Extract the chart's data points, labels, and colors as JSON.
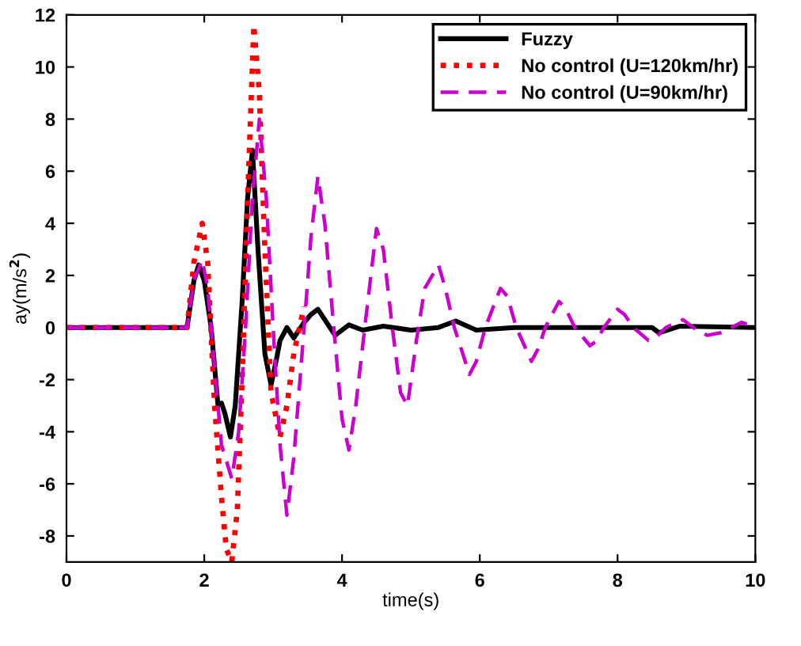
{
  "chart_data": {
    "type": "line",
    "xlabel": "time(s)",
    "ylabel": "ay(m/s$^{2}$)",
    "xlim": [
      0,
      10
    ],
    "ylim": [
      -9,
      12
    ],
    "xticks": [
      0,
      2,
      4,
      6,
      8,
      10
    ],
    "yticks": [
      -8,
      -6,
      -4,
      -2,
      0,
      2,
      4,
      6,
      8,
      10,
      12
    ],
    "grid": false,
    "legend": "top right",
    "series": [
      {
        "name": "Fuzzy",
        "color": "#000000",
        "line_style": "solid",
        "x": [
          0,
          1.75,
          1.85,
          1.92,
          2.0,
          2.1,
          2.2,
          2.25,
          2.3,
          2.38,
          2.45,
          2.55,
          2.63,
          2.7,
          2.78,
          2.88,
          2.97,
          3.05,
          3.1,
          3.2,
          3.3,
          3.45,
          3.55,
          3.65,
          3.75,
          3.9,
          4.1,
          4.3,
          4.6,
          5.0,
          5.4,
          5.65,
          5.95,
          6.5,
          7.5,
          8.5,
          8.6,
          8.9,
          10
        ],
        "values": [
          0,
          0,
          1.8,
          2.4,
          1.8,
          0,
          -3,
          -2.9,
          -3.3,
          -4.2,
          -3,
          1,
          5,
          6.8,
          3,
          -1,
          -2.2,
          -1.2,
          -0.5,
          0,
          -0.4,
          0.2,
          0.5,
          0.7,
          0.3,
          -0.3,
          0.1,
          -0.1,
          0.05,
          -0.1,
          0,
          0.25,
          -0.1,
          0,
          0,
          0,
          -0.2,
          0.05,
          0
        ]
      },
      {
        "name": "No control (U=120km/hr)",
        "color": "#ff0000",
        "line_style": "dotted",
        "x": [
          0,
          1.75,
          1.85,
          1.97,
          2.05,
          2.15,
          2.25,
          2.32,
          2.4,
          2.48,
          2.55,
          2.63,
          2.72,
          2.8,
          2.88,
          2.97,
          3.1,
          3.2,
          3.3,
          3.45
        ],
        "values": [
          0,
          0,
          2.5,
          4,
          2.5,
          -3,
          -6.5,
          -8.5,
          -9,
          -7,
          -2,
          5,
          11.6,
          9,
          3,
          -2.5,
          -4.2,
          -3,
          -1,
          0.8
        ]
      },
      {
        "name": "No control (U=90km/hr)",
        "color": "#cc00cc",
        "line_style": "dashed",
        "x": [
          0,
          1.75,
          1.85,
          1.97,
          2.05,
          2.15,
          2.25,
          2.4,
          2.5,
          2.6,
          2.7,
          2.8,
          2.9,
          3.0,
          3.1,
          3.2,
          3.3,
          3.45,
          3.55,
          3.65,
          3.75,
          3.88,
          4.0,
          4.1,
          4.2,
          4.33,
          4.5,
          4.6,
          4.73,
          4.85,
          4.95,
          5.08,
          5.2,
          5.4,
          5.5,
          5.63,
          5.85,
          5.95,
          6.08,
          6.3,
          6.4,
          6.53,
          6.75,
          6.85,
          6.95,
          7.15,
          7.25,
          7.38,
          7.6,
          7.7,
          7.8,
          8.0,
          8.1,
          8.23,
          8.45,
          8.55,
          8.7,
          8.95,
          9.1,
          9.3,
          9.5,
          9.8,
          10
        ],
        "values": [
          0,
          0,
          1.8,
          2.6,
          1.5,
          -1.5,
          -4.5,
          -5.8,
          -4,
          0,
          5,
          8,
          5,
          0,
          -4.5,
          -7.2,
          -5,
          0,
          3.5,
          5.8,
          4,
          0,
          -3.5,
          -4.7,
          -3,
          0,
          3.8,
          3,
          0,
          -2.5,
          -3,
          -0.5,
          1.5,
          2.4,
          1.5,
          0,
          -1.8,
          -1.3,
          0,
          1.5,
          1.2,
          0,
          -1.3,
          -0.8,
          0,
          1,
          0.7,
          0,
          -0.7,
          -0.5,
          0,
          0.7,
          0.5,
          0,
          -0.5,
          -0.4,
          0,
          0.3,
          0,
          -0.3,
          -0.2,
          0.2,
          0
        ]
      }
    ]
  }
}
